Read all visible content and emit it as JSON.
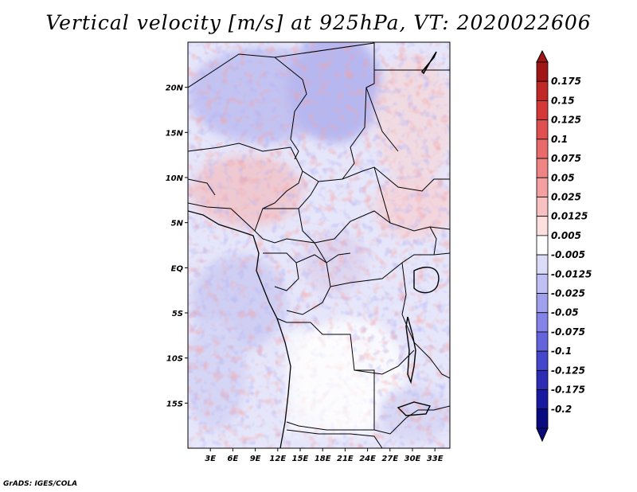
{
  "chart_data": {
    "type": "heatmap",
    "title": "Vertical velocity [m/s] at 925hPa, VT: 2020022606",
    "xlabel": "",
    "ylabel": "",
    "xlim": [
      0,
      35
    ],
    "ylim": [
      -20,
      25
    ],
    "x_ticks": [
      {
        "value": 3,
        "label": "3E"
      },
      {
        "value": 6,
        "label": "6E"
      },
      {
        "value": 9,
        "label": "9E"
      },
      {
        "value": 12,
        "label": "12E"
      },
      {
        "value": 15,
        "label": "15E"
      },
      {
        "value": 18,
        "label": "18E"
      },
      {
        "value": 21,
        "label": "21E"
      },
      {
        "value": 24,
        "label": "24E"
      },
      {
        "value": 27,
        "label": "27E"
      },
      {
        "value": 30,
        "label": "30E"
      },
      {
        "value": 33,
        "label": "33E"
      }
    ],
    "y_ticks": [
      {
        "value": 20,
        "label": "20N"
      },
      {
        "value": 15,
        "label": "15N"
      },
      {
        "value": 10,
        "label": "10N"
      },
      {
        "value": 5,
        "label": "5N"
      },
      {
        "value": 0,
        "label": "EQ"
      },
      {
        "value": -5,
        "label": "5S"
      },
      {
        "value": -10,
        "label": "10S"
      },
      {
        "value": -15,
        "label": "15S"
      }
    ],
    "colorbar": {
      "labels": [
        "0.175",
        "0.15",
        "0.125",
        "0.1",
        "0.075",
        "0.05",
        "0.025",
        "0.0125",
        "0.005",
        "-0.005",
        "-0.0125",
        "-0.025",
        "-0.05",
        "-0.075",
        "-0.1",
        "-0.125",
        "-0.175",
        "-0.2"
      ],
      "colors": [
        "#a01616",
        "#c02828",
        "#d63838",
        "#e05050",
        "#e86a6a",
        "#ee8484",
        "#f4a0a0",
        "#f8c0c0",
        "#fce0e0",
        "#ffffff",
        "#dcdcf8",
        "#c0c0f4",
        "#a0a0ee",
        "#8484e8",
        "#6464dc",
        "#4646cc",
        "#2c2cb4",
        "#1818a0",
        "#0a0a80"
      ],
      "extend": "both"
    }
  },
  "footer": "GrADS: IGES/COLA"
}
